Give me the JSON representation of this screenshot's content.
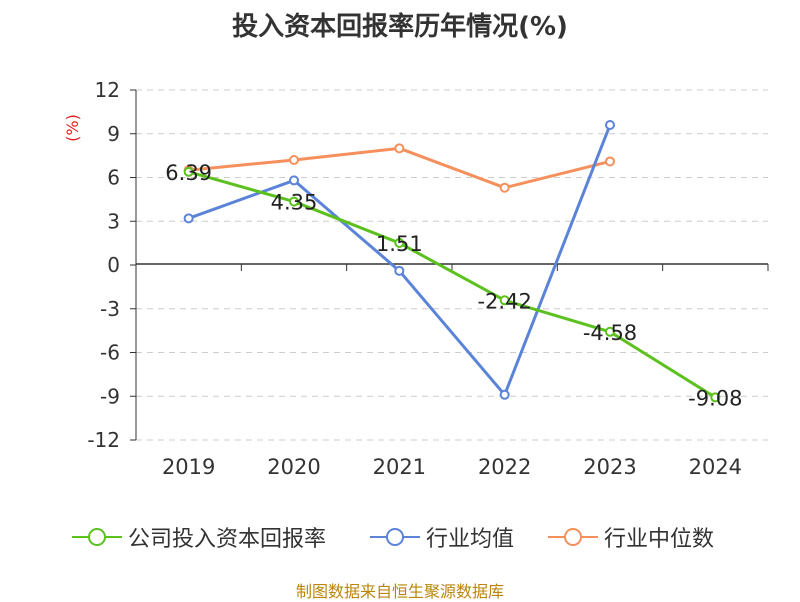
{
  "title": "投入资本回报率历年情况(%)",
  "source": "制图数据来自恒生聚源数据库",
  "chart_data": {
    "type": "line",
    "title": "投入资本回报率历年情况(%)",
    "ylabel": "(%)",
    "xlabel": "",
    "categories": [
      "2019",
      "2020",
      "2021",
      "2022",
      "2023",
      "2024"
    ],
    "ylim": [
      -12,
      12
    ],
    "yticks": [
      12,
      9,
      6,
      3,
      0,
      -3,
      -6,
      -9,
      -12
    ],
    "ytick_labels": [
      "12",
      "9",
      "6",
      "3",
      "0",
      "-3",
      "-6",
      "-9",
      "-12"
    ],
    "grid": true,
    "legend_position": "bottom",
    "series": [
      {
        "name": "公司投入资本回报率",
        "color": "#5cc11e",
        "values": [
          6.39,
          4.35,
          1.51,
          -2.42,
          -4.58,
          -9.08
        ],
        "labels": [
          "6.39",
          "4.35",
          "1.51",
          "-2.42",
          "-4.58",
          "-9.08"
        ]
      },
      {
        "name": "行业均值",
        "color": "#5b84d9",
        "values": [
          3.2,
          5.8,
          -0.4,
          -8.9,
          9.6,
          null
        ]
      },
      {
        "name": "行业中位数",
        "color": "#f5905c",
        "values": [
          6.5,
          7.2,
          8.0,
          5.3,
          7.1,
          null
        ]
      }
    ]
  }
}
